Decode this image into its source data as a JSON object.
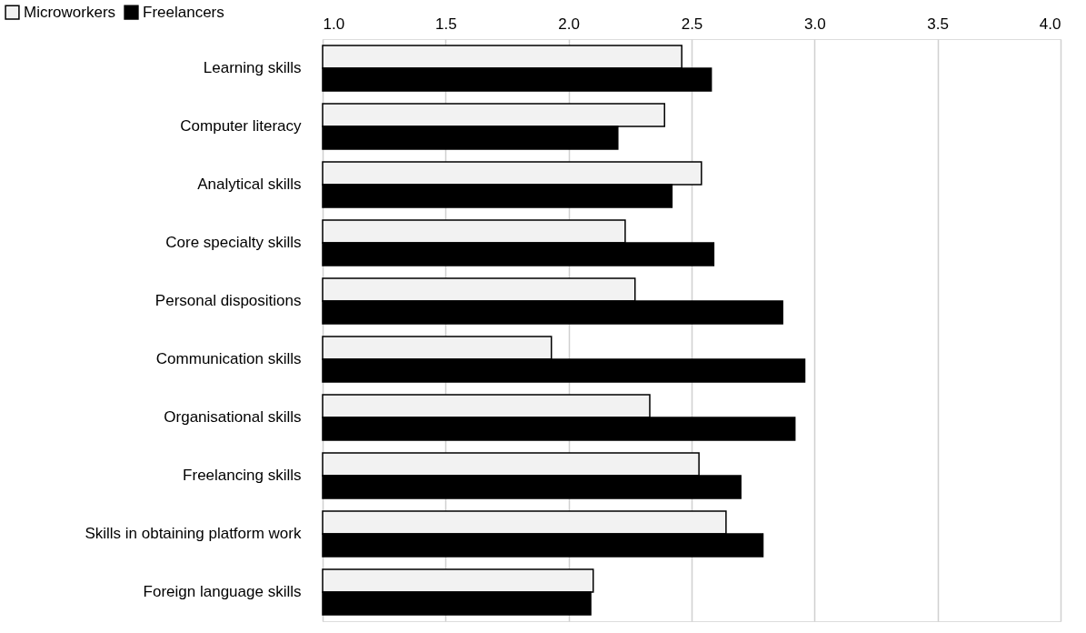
{
  "chart_data": {
    "type": "bar",
    "orientation": "horizontal",
    "categories": [
      "Learning skills",
      "Computer literacy",
      "Analytical skills",
      "Core specialty skills",
      "Personal dispositions",
      "Communication skills",
      "Organisational skills",
      "Freelancing skills",
      "Skills in obtaining platform work",
      "Foreign language skills"
    ],
    "series": [
      {
        "name": "Microworkers",
        "color": "#f2f2f2",
        "values": [
          2.46,
          2.39,
          2.54,
          2.23,
          2.27,
          1.93,
          2.33,
          2.53,
          2.64,
          2.1
        ]
      },
      {
        "name": "Freelancers",
        "color": "#000000",
        "values": [
          2.58,
          2.2,
          2.42,
          2.59,
          2.87,
          2.96,
          2.92,
          2.7,
          2.79,
          2.09
        ]
      }
    ],
    "xlim": [
      1.0,
      4.0
    ],
    "xticks": [
      {
        "value": 1.0,
        "label": "1.0"
      },
      {
        "value": 1.5,
        "label": "1.5"
      },
      {
        "value": 2.0,
        "label": "2.0"
      },
      {
        "value": 2.5,
        "label": "2.5"
      },
      {
        "value": 3.0,
        "label": "3.0"
      },
      {
        "value": 3.5,
        "label": "3.5"
      },
      {
        "value": 4.0,
        "label": "4.0"
      }
    ],
    "grid": "x",
    "legend": "top left"
  }
}
